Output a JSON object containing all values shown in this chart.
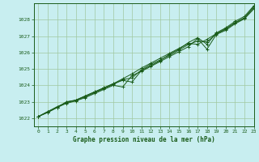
{
  "title": "Graphe pression niveau de la mer (hPa)",
  "background_color": "#c8eef0",
  "plot_bg_color": "#c8eef0",
  "grid_color": "#a0c8a0",
  "line_color": "#1a5c1a",
  "marker_color": "#1a5c1a",
  "xlim": [
    -0.5,
    23
  ],
  "ylim": [
    1021.5,
    1029.0
  ],
  "yticks": [
    1022,
    1023,
    1024,
    1025,
    1026,
    1027,
    1028
  ],
  "xticks": [
    0,
    1,
    2,
    3,
    4,
    5,
    6,
    7,
    8,
    9,
    10,
    11,
    12,
    13,
    14,
    15,
    16,
    17,
    18,
    19,
    20,
    21,
    22,
    23
  ],
  "series": [
    [
      1022.1,
      1022.4,
      1022.65,
      1022.9,
      1023.05,
      1023.25,
      1023.5,
      1023.75,
      1024.0,
      1023.9,
      1024.6,
      1024.85,
      1025.15,
      1025.45,
      1025.75,
      1026.05,
      1026.35,
      1026.85,
      1026.2,
      1027.1,
      1027.35,
      1027.75,
      1028.05,
      1028.65
    ],
    [
      1022.1,
      1022.4,
      1022.7,
      1022.95,
      1023.1,
      1023.35,
      1023.6,
      1023.85,
      1024.1,
      1024.4,
      1024.7,
      1025.05,
      1025.35,
      1025.65,
      1025.95,
      1026.25,
      1026.55,
      1026.5,
      1026.8,
      1027.15,
      1027.45,
      1027.8,
      1028.1,
      1028.8
    ],
    [
      1022.1,
      1022.35,
      1022.65,
      1023.0,
      1023.1,
      1023.35,
      1023.6,
      1023.85,
      1024.1,
      1024.3,
      1024.2,
      1024.9,
      1025.2,
      1025.5,
      1025.9,
      1026.2,
      1026.6,
      1026.9,
      1026.5,
      1027.2,
      1027.5,
      1027.9,
      1028.2,
      1028.85
    ],
    [
      1022.1,
      1022.35,
      1022.65,
      1022.98,
      1023.08,
      1023.3,
      1023.55,
      1023.8,
      1024.05,
      1024.35,
      1024.45,
      1024.95,
      1025.28,
      1025.55,
      1025.82,
      1026.15,
      1026.48,
      1026.7,
      1026.65,
      1027.12,
      1027.42,
      1027.82,
      1028.12,
      1028.72
    ]
  ]
}
